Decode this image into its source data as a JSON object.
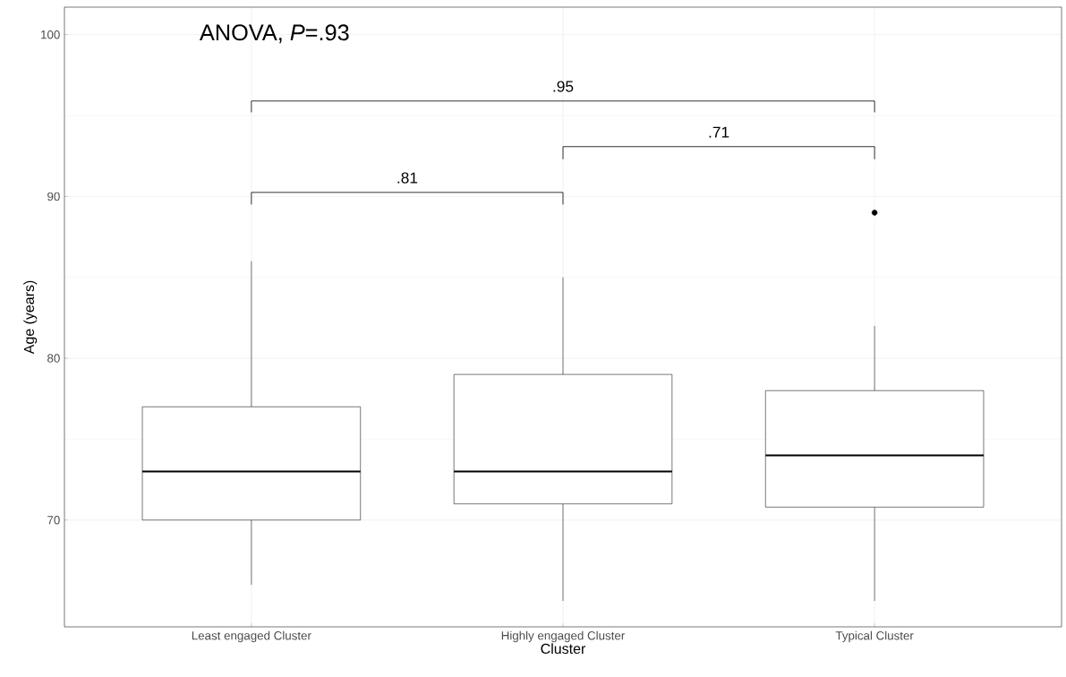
{
  "chart_data": {
    "type": "box",
    "xlabel": "Cluster",
    "ylabel": "Age (years)",
    "categories": [
      "Least engaged Cluster",
      "Highly engaged Cluster",
      "Typical Cluster"
    ],
    "boxes": [
      {
        "low": 66,
        "q1": 70,
        "median": 73,
        "q3": 77,
        "high": 86
      },
      {
        "low": 65,
        "q1": 71,
        "median": 73,
        "q3": 79,
        "high": 85
      },
      {
        "low": 65,
        "q1": 70.8,
        "median": 74,
        "q3": 78,
        "high": 82,
        "outliers": [
          89
        ]
      }
    ],
    "color": "#000000",
    "ylim": [
      63.4,
      101.7
    ],
    "yticks": [
      70,
      80,
      90,
      100
    ],
    "grid": true,
    "annotations": [
      "ANOVA, *P*=.93",
      ".95",
      ".81",
      ".71"
    ]
  }
}
